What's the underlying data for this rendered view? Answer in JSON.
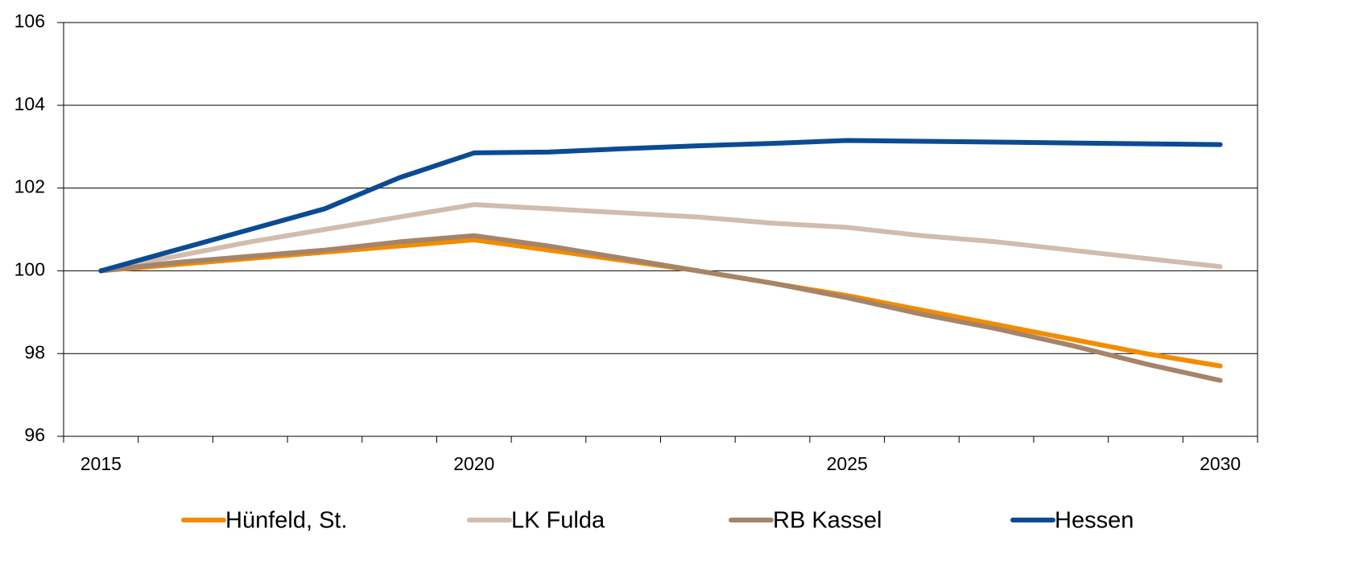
{
  "chart_data": {
    "type": "line",
    "categories": [
      "2015",
      null,
      null,
      null,
      null,
      "2020",
      null,
      null,
      null,
      null,
      "2025",
      null,
      null,
      null,
      null,
      "2030"
    ],
    "series": [
      {
        "name": "Hünfeld, St.",
        "color": "#f28c00",
        "values": [
          100,
          100.15,
          100.3,
          100.45,
          100.6,
          100.75,
          100.5,
          100.25,
          100.0,
          99.7,
          99.4,
          99.05,
          98.7,
          98.35,
          98.0,
          97.7
        ]
      },
      {
        "name": "LK Fulda",
        "color": "#d1bcad",
        "values": [
          100,
          100.35,
          100.7,
          101.0,
          101.3,
          101.6,
          101.5,
          101.4,
          101.3,
          101.15,
          101.05,
          100.85,
          100.7,
          100.5,
          100.3,
          100.1
        ]
      },
      {
        "name": "RB Kassel",
        "color": "#a58468",
        "values": [
          100,
          100.2,
          100.35,
          100.5,
          100.7,
          100.85,
          100.6,
          100.3,
          100.0,
          99.7,
          99.35,
          98.95,
          98.6,
          98.2,
          97.75,
          97.35
        ]
      },
      {
        "name": "Hessen",
        "color": "#0a4b94",
        "values": [
          100,
          100.5,
          101.0,
          101.5,
          102.25,
          102.85,
          102.87,
          102.95,
          103.02,
          103.08,
          103.15,
          103.13,
          103.11,
          103.09,
          103.07,
          103.05
        ]
      }
    ],
    "ylim": [
      96,
      106
    ],
    "yticks": [
      96,
      98,
      100,
      102,
      104,
      106
    ],
    "grid": true,
    "legend": "bottom"
  }
}
